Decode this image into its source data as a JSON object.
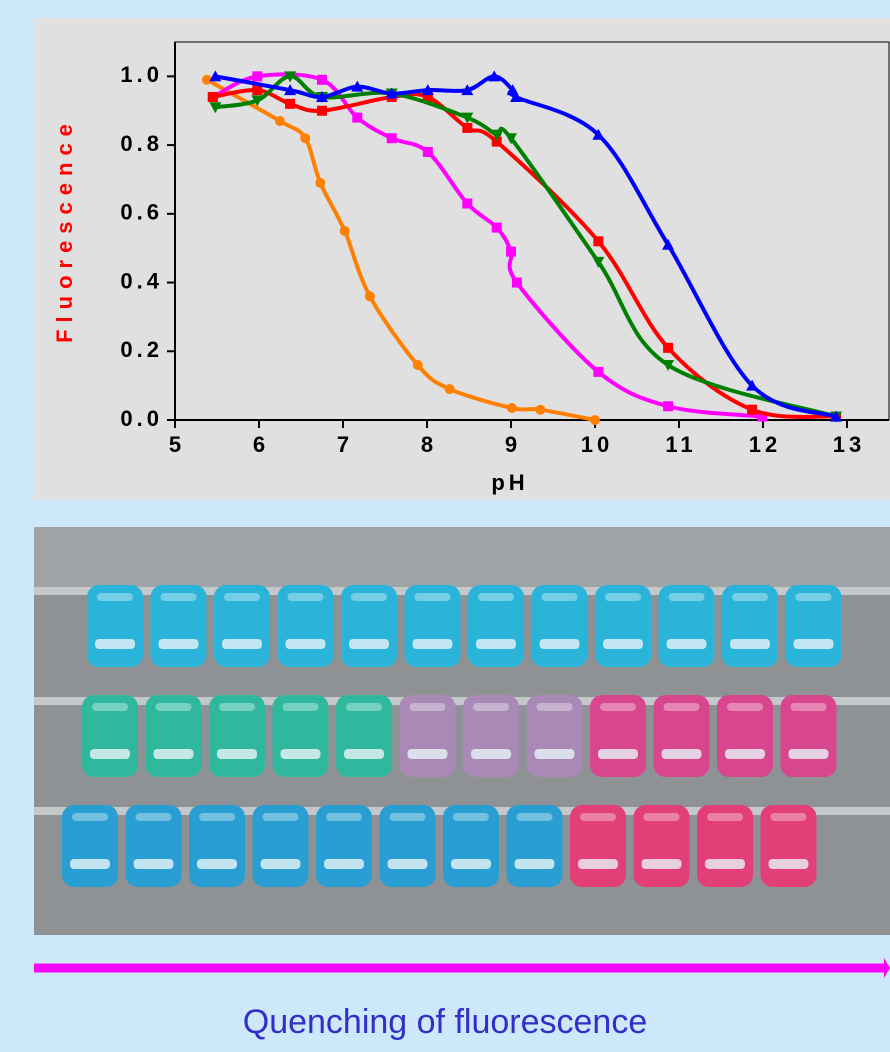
{
  "chart_data": {
    "type": "scatter",
    "xlabel": "pH",
    "ylabel": "Fluorescence",
    "xlim": [
      5,
      13.5
    ],
    "ylim": [
      0,
      1.1
    ],
    "xticks": [
      5,
      6,
      7,
      8,
      9,
      10,
      11,
      12,
      13
    ],
    "yticks": [
      {
        "value": 0,
        "label": "0.0"
      },
      {
        "value": 0.2,
        "label": "0.2"
      },
      {
        "value": 0.4,
        "label": "0.4"
      },
      {
        "value": 0.6,
        "label": "0.6"
      },
      {
        "value": 0.8,
        "label": "0.8"
      },
      {
        "value": 1,
        "label": "1.0"
      }
    ],
    "grid": false,
    "series": [
      {
        "color": "#ff8000",
        "marker": "circle",
        "x": [
          5.38,
          6.25,
          6.55,
          6.73,
          7.02,
          7.32,
          7.89,
          8.27,
          9.01,
          9.35,
          10.0
        ],
        "y": [
          0.99,
          0.87,
          0.82,
          0.69,
          0.55,
          0.36,
          0.16,
          0.09,
          0.035,
          0.03,
          0.0
        ]
      },
      {
        "color": "#ff00ff",
        "marker": "square",
        "x": [
          5.45,
          5.98,
          6.75,
          7.17,
          7.58,
          8.01,
          8.48,
          8.83,
          9.0,
          9.07,
          10.04,
          10.87,
          11.99
        ],
        "y": [
          0.94,
          1.0,
          0.99,
          0.88,
          0.82,
          0.78,
          0.63,
          0.56,
          0.49,
          0.4,
          0.14,
          0.04,
          0.01
        ]
      },
      {
        "color": "#ff0000",
        "marker": "square",
        "x": [
          5.45,
          5.98,
          6.37,
          6.75,
          7.58,
          8.01,
          8.48,
          8.83,
          10.04,
          10.87,
          11.87,
          12.87
        ],
        "y": [
          0.94,
          0.96,
          0.92,
          0.9,
          0.94,
          0.94,
          0.85,
          0.81,
          0.52,
          0.21,
          0.03,
          0.01
        ]
      },
      {
        "color": "#008000",
        "marker": "triangle-down",
        "x": [
          5.48,
          5.98,
          6.37,
          6.75,
          7.58,
          8.48,
          8.83,
          9.0,
          10.04,
          10.87,
          12.87
        ],
        "y": [
          0.91,
          0.93,
          1.0,
          0.94,
          0.95,
          0.88,
          0.83,
          0.82,
          0.46,
          0.16,
          0.01
        ]
      },
      {
        "color": "#0000ff",
        "marker": "triangle-up",
        "x": [
          5.48,
          6.37,
          6.75,
          7.17,
          7.58,
          8.01,
          8.48,
          8.8,
          9.02,
          9.06,
          10.04,
          10.87,
          11.87,
          12.87
        ],
        "y": [
          1.0,
          0.96,
          0.94,
          0.97,
          0.95,
          0.96,
          0.96,
          1.0,
          0.96,
          0.94,
          0.83,
          0.51,
          0.1,
          0.01
        ]
      }
    ]
  },
  "caption": "Quenching of fluorescence"
}
